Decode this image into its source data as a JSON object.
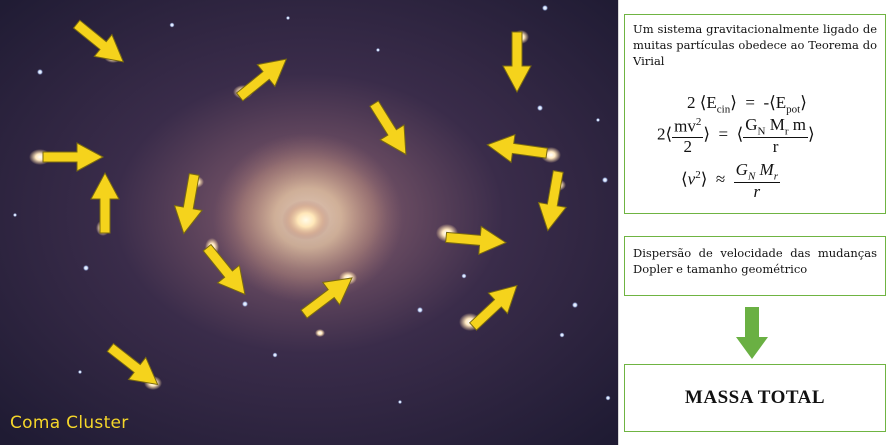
{
  "image_caption": "Coma Cluster",
  "virial": {
    "text": "Um sistema gravitacionalmente ligado de muitas partículas obedece ao Teorema do Virial",
    "eq1": {
      "coef": "2",
      "lbracket": "⟨",
      "ecin": "E",
      "ecin_sub": "cin",
      "rbracket": "⟩",
      "equals": "=",
      "neg": "-",
      "epot": "E",
      "epot_sub": "pot"
    },
    "eq2": {
      "coef": "2",
      "lbracket": "⟨",
      "num": "mv",
      "num_sup": "2",
      "den": "2",
      "rbracket": "⟩",
      "equals": "=",
      "g": "G",
      "g_sub": "N",
      "m": "M",
      "m_sub": "r",
      "m2": "m",
      "den2": "r"
    },
    "eq3": {
      "lbracket": "⟨",
      "nu": "ν",
      "nu_sup": "2",
      "rbracket": "⟩",
      "approx": "≈",
      "g": "G",
      "g_sub": "N",
      "m": "M",
      "m_sub": "r",
      "den": "r"
    }
  },
  "doppler": {
    "text": "Dispersão de velocidade das mudanças Dopler e tamanho geométrico"
  },
  "result": {
    "label": "MASSA TOTAL"
  },
  "colors": {
    "box_border": "#6fb442",
    "arrow_fill": "#f5d31c",
    "down_arrow": "#6ab043",
    "caption": "#f5d62a"
  }
}
